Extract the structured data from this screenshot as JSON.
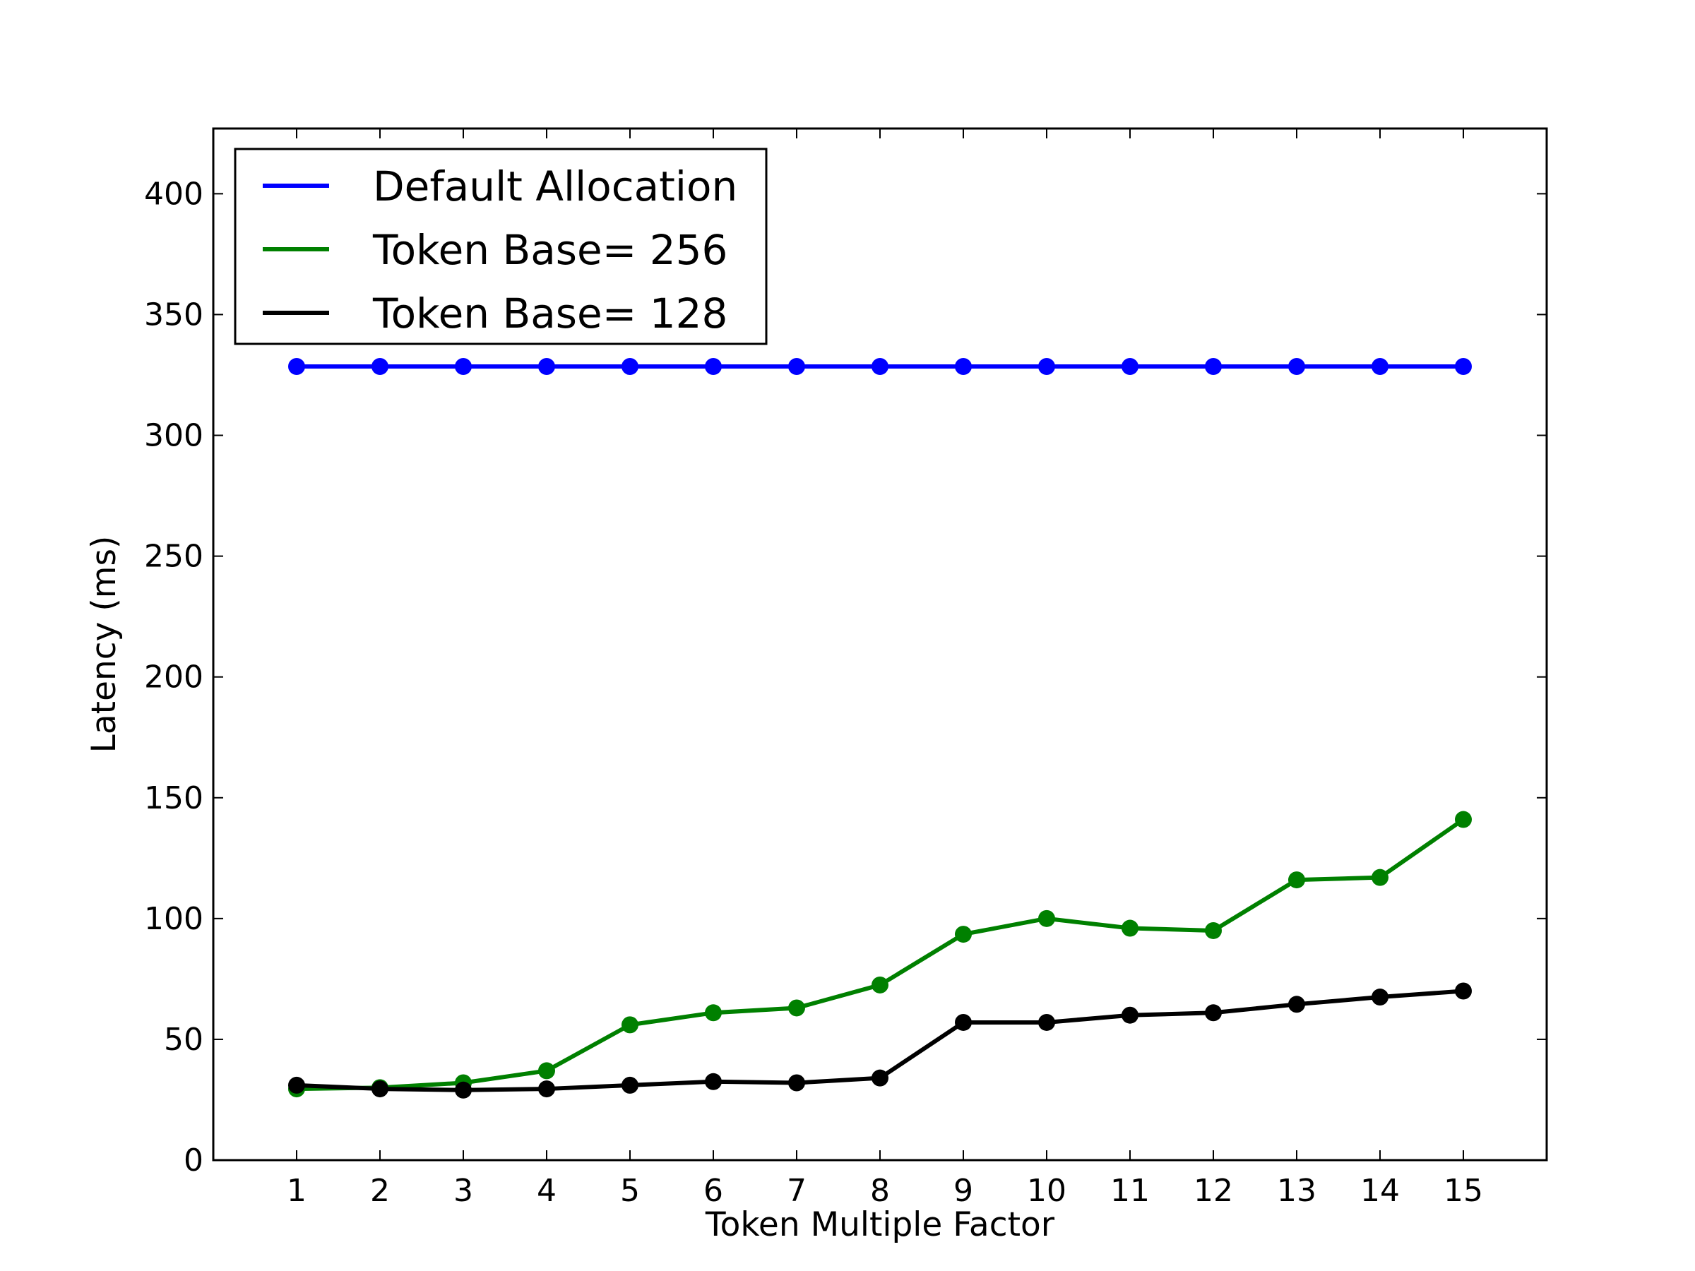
{
  "chart_data": {
    "type": "line",
    "title": "",
    "xlabel": "Token Multiple Factor",
    "ylabel": "Latency (ms)",
    "x": [
      1,
      2,
      3,
      4,
      5,
      6,
      7,
      8,
      9,
      10,
      11,
      12,
      13,
      14,
      15
    ],
    "xticks": [
      "1",
      "2",
      "3",
      "4",
      "5",
      "6",
      "7",
      "8",
      "9",
      "10",
      "11",
      "12",
      "13",
      "14",
      "15"
    ],
    "yticks": [
      "0",
      "50",
      "100",
      "150",
      "200",
      "250",
      "300",
      "350",
      "400"
    ],
    "xlim": [
      0,
      16
    ],
    "ylim": [
      0,
      427
    ],
    "grid": false,
    "legend_position": "top-left",
    "series": [
      {
        "name": "Default Allocation",
        "color": "#0000ff",
        "values": [
          328.5,
          328.5,
          328.5,
          328.5,
          328.5,
          328.5,
          328.5,
          328.5,
          328.5,
          328.5,
          328.5,
          328.5,
          328.5,
          328.5,
          328.5
        ]
      },
      {
        "name": "Token Base= 256",
        "color": "#008000",
        "values": [
          29.5,
          30,
          32,
          37,
          56,
          61,
          63,
          72.5,
          93.5,
          100,
          96,
          95,
          116,
          117,
          141
        ]
      },
      {
        "name": "Token Base= 128",
        "color": "#000000",
        "values": [
          31,
          29.5,
          29,
          29.5,
          31,
          32.5,
          32,
          34,
          57,
          57,
          60,
          61,
          64.5,
          67.5,
          70
        ]
      }
    ]
  }
}
